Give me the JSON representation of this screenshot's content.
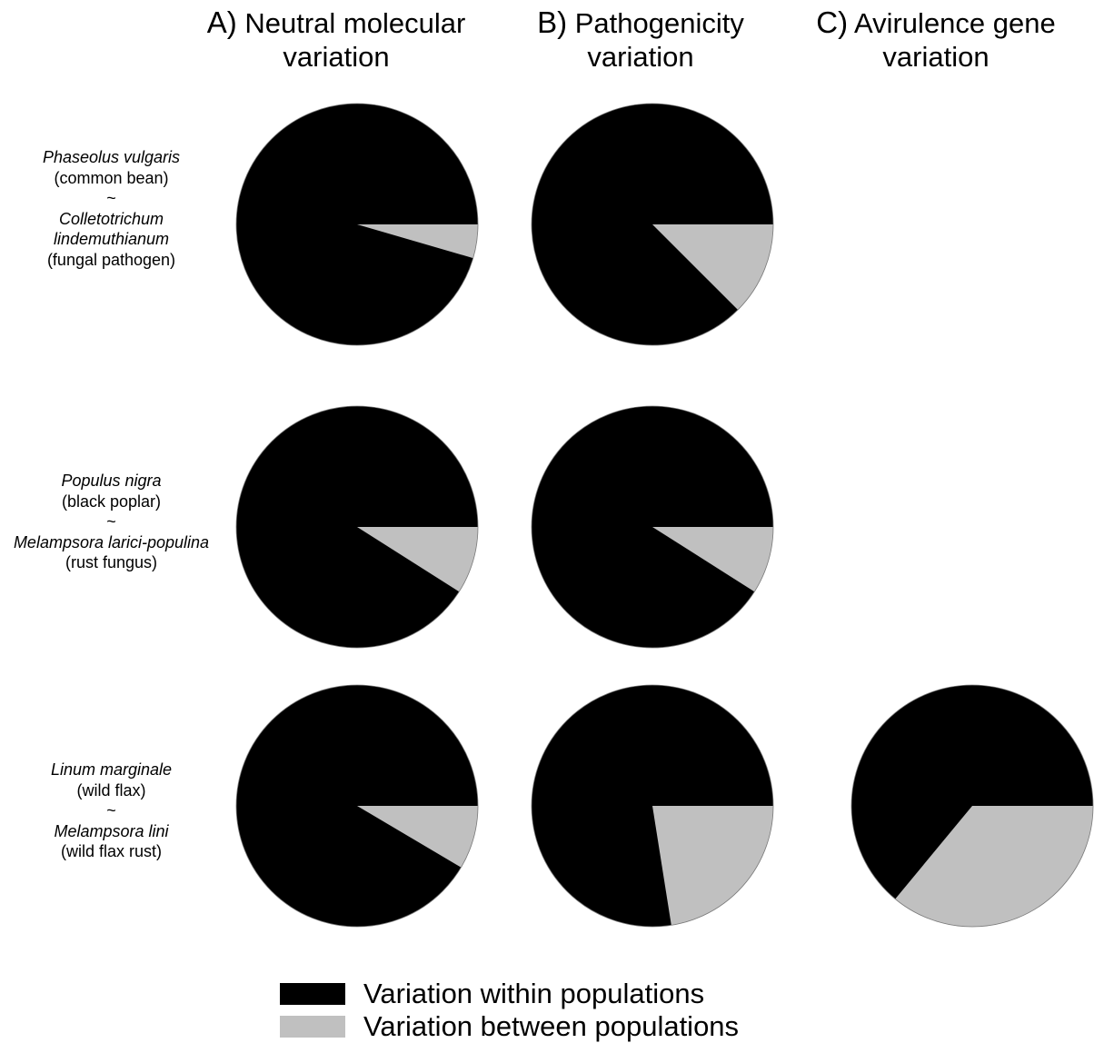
{
  "chart_data": {
    "type": "pie",
    "colors": {
      "within": "#000000",
      "between": "#c0c0c0"
    },
    "columns": [
      {
        "letter": "A)",
        "title_line1": "Neutral molecular",
        "title_line2": "variation"
      },
      {
        "letter": "B)",
        "title_line1": "Pathogenicity",
        "title_line2": "variation"
      },
      {
        "letter": "C)",
        "title_line1": "Avirulence gene",
        "title_line2": "variation"
      }
    ],
    "rows": [
      {
        "host": "Phaseolus vulgaris",
        "host_common": "(common bean)",
        "separator": "~",
        "pathogen_line1": "Colletotrichum",
        "pathogen_line2": "lindemuthianum",
        "pathogen_common": "(fungal pathogen)"
      },
      {
        "host": "Populus nigra",
        "host_common": "(black poplar)",
        "separator": "~",
        "pathogen_line1": "Melampsora larici-populina",
        "pathogen_common": "(rust fungus)"
      },
      {
        "host": "Linum marginale",
        "host_common": "(wild flax)",
        "separator": "~",
        "pathogen_line1": "Melampsora lini",
        "pathogen_common": "(wild flax rust)"
      }
    ],
    "pies": [
      {
        "row": 0,
        "column": 0,
        "within_pct": 95.5,
        "between_pct": 4.5
      },
      {
        "row": 0,
        "column": 1,
        "within_pct": 87.5,
        "between_pct": 12.5
      },
      {
        "row": 1,
        "column": 0,
        "within_pct": 91,
        "between_pct": 9
      },
      {
        "row": 1,
        "column": 1,
        "within_pct": 91,
        "between_pct": 9
      },
      {
        "row": 2,
        "column": 0,
        "within_pct": 91.5,
        "between_pct": 8.5
      },
      {
        "row": 2,
        "column": 1,
        "within_pct": 77.5,
        "between_pct": 22.5
      },
      {
        "row": 2,
        "column": 2,
        "within_pct": 64,
        "between_pct": 36
      }
    ],
    "legend": [
      {
        "label": "Variation within populations",
        "color": "#000000"
      },
      {
        "label": "Variation between populations",
        "color": "#c0c0c0"
      }
    ],
    "legend_position": "bottom"
  }
}
